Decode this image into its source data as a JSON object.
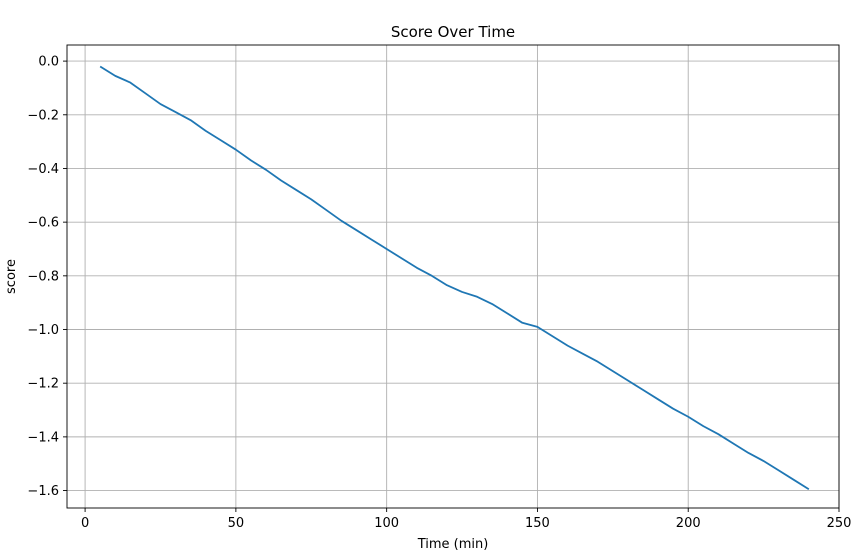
{
  "chart_data": {
    "type": "line",
    "title": "Score Over Time",
    "xlabel": "Time (min)",
    "ylabel": "score",
    "xlim": [
      -6,
      250
    ],
    "ylim": [
      -1.665,
      0.06
    ],
    "xticks": [
      0,
      50,
      100,
      150,
      200,
      250
    ],
    "yticks": [
      0.0,
      -0.2,
      -0.4,
      -0.6,
      -0.8,
      -1.0,
      -1.2,
      -1.4,
      -1.6
    ],
    "grid": true,
    "line_color": "#1f77b4",
    "series": [
      {
        "x": [
          5,
          10,
          15,
          20,
          25,
          30,
          35,
          40,
          45,
          50,
          55,
          60,
          65,
          70,
          75,
          80,
          85,
          90,
          95,
          100,
          105,
          110,
          115,
          120,
          125,
          130,
          135,
          140,
          145,
          150,
          155,
          160,
          165,
          170,
          175,
          180,
          185,
          190,
          195,
          200,
          205,
          210,
          215,
          220,
          225,
          230,
          235,
          240
        ],
        "y": [
          -0.02,
          -0.055,
          -0.08,
          -0.12,
          -0.16,
          -0.19,
          -0.22,
          -0.26,
          -0.295,
          -0.33,
          -0.37,
          -0.405,
          -0.445,
          -0.48,
          -0.515,
          -0.555,
          -0.595,
          -0.63,
          -0.665,
          -0.7,
          -0.735,
          -0.77,
          -0.8,
          -0.835,
          -0.86,
          -0.878,
          -0.905,
          -0.94,
          -0.975,
          -0.99,
          -1.025,
          -1.06,
          -1.09,
          -1.12,
          -1.155,
          -1.19,
          -1.225,
          -1.26,
          -1.295,
          -1.325,
          -1.36,
          -1.39,
          -1.425,
          -1.46,
          -1.49,
          -1.525,
          -1.56,
          -1.595
        ]
      }
    ]
  }
}
